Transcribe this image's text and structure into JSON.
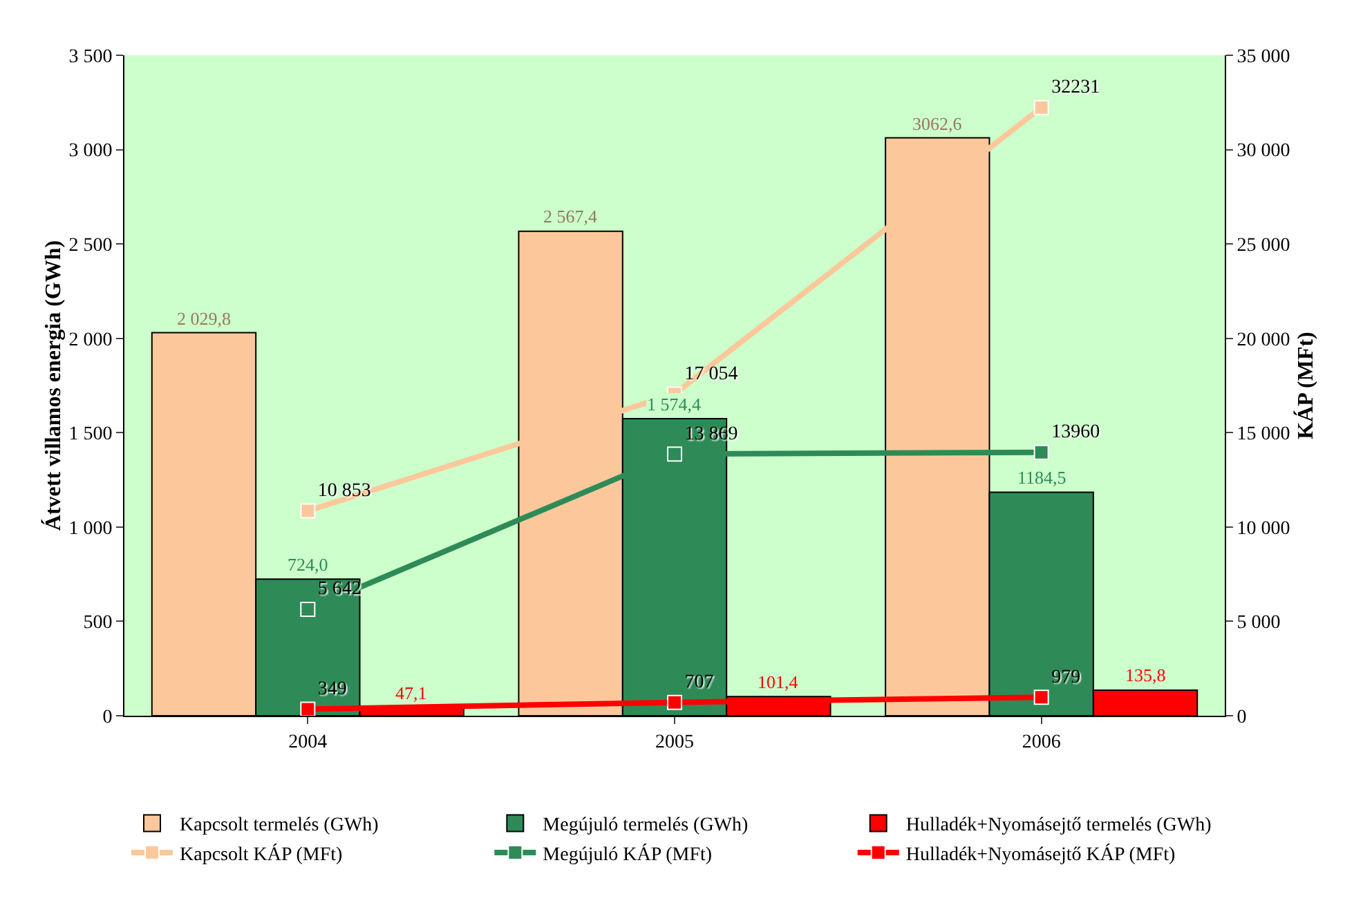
{
  "chart_data": {
    "type": "bar",
    "ylabel": "Átvett villamos energia (GWh)",
    "y2label": "KÁP (MFt)",
    "categories": [
      "2004",
      "2005",
      "2006"
    ],
    "series": [
      {
        "name": "Kapcsolt termelés (GWh)",
        "type": "bar",
        "color": "#fcc89b",
        "values": [
          2029.8,
          2567.4,
          3062.6
        ],
        "value_labels": [
          "2 029,8",
          "2 567,4",
          "3062,6"
        ]
      },
      {
        "name": "Megújuló termelés (GWh)",
        "type": "bar",
        "color": "#2e8b57",
        "values": [
          724.0,
          1574.4,
          1184.5
        ],
        "value_labels": [
          "724,0",
          "1 574,4",
          "1184,5"
        ]
      },
      {
        "name": "Hulladék+Nyomásejtő termelés (GWh)",
        "type": "bar",
        "color": "#ff0000",
        "values": [
          47.1,
          101.4,
          135.8
        ],
        "value_labels": [
          "47,1",
          "101,4",
          "135,8"
        ]
      },
      {
        "name": "Kapcsolt KÁP (MFt)",
        "type": "line",
        "axis": "y2",
        "color": "#fcc89b",
        "values": [
          10853,
          17054,
          32231
        ],
        "value_labels": [
          "10 853",
          "17 054",
          "32231"
        ]
      },
      {
        "name": "Megújuló KÁP (MFt)",
        "type": "line",
        "axis": "y2",
        "color": "#2e8b57",
        "values": [
          5642,
          13869,
          13960
        ],
        "value_labels": [
          "5 642",
          "13 869",
          "13960"
        ]
      },
      {
        "name": "Hulladék+Nyomásejtő KÁP (MFt)",
        "type": "line",
        "axis": "y2",
        "color": "#ff0000",
        "values": [
          349,
          707,
          979
        ],
        "value_labels": [
          "349",
          "707",
          "979"
        ]
      }
    ],
    "ylim": [
      0,
      3500
    ],
    "yticks": [
      0,
      {
        "value": 500,
        "label": "500"
      },
      {
        "value": 1000,
        "label": "1 000"
      },
      {
        "value": 1500,
        "label": "1 500"
      },
      {
        "value": 2000,
        "label": "2 000"
      },
      {
        "value": 2500,
        "label": "2 500"
      },
      {
        "value": 3000,
        "label": "3 000"
      },
      {
        "value": 3500,
        "label": "3 500"
      }
    ],
    "y2lim": [
      0,
      35000
    ],
    "y2ticks": [
      0,
      {
        "value": 5000,
        "label": "5 000"
      },
      {
        "value": 10000,
        "label": "10 000"
      },
      {
        "value": 15000,
        "label": "15 000"
      },
      {
        "value": 20000,
        "label": "20 000"
      },
      {
        "value": 25000,
        "label": "25 000"
      },
      {
        "value": 30000,
        "label": "30 000"
      },
      {
        "value": 35000,
        "label": "35 000"
      }
    ],
    "grid": false,
    "legend": "bottom",
    "marker": "square",
    "line_style": "solid"
  }
}
